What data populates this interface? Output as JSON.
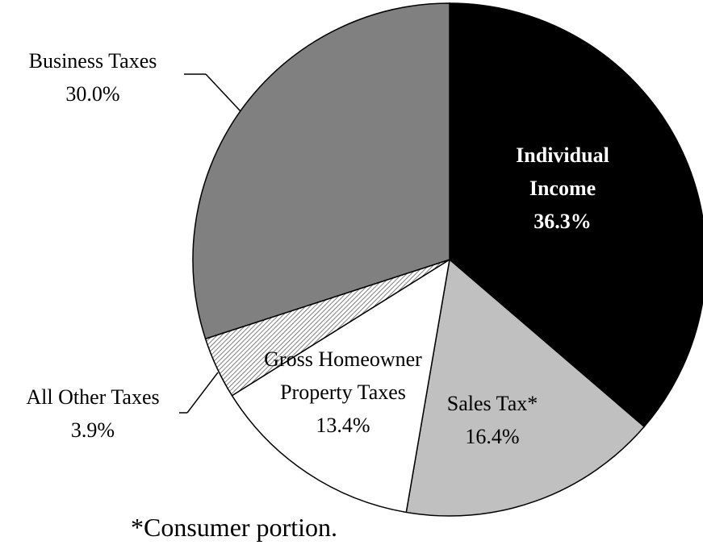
{
  "chart_data": {
    "type": "pie",
    "categories": [
      "Individual Income",
      "Sales Tax*",
      "Gross Homeowner Property Taxes",
      "All Other Taxes",
      "Business Taxes"
    ],
    "values": [
      36.3,
      16.4,
      13.4,
      3.9,
      30.0
    ],
    "value_labels": [
      "36.3%",
      "16.4%",
      "13.4%",
      "3.9%",
      "30.0%"
    ],
    "colors": [
      "#000000",
      "#c0c0c0",
      "#ffffff",
      "#555555",
      "#808080"
    ],
    "patterns": [
      null,
      null,
      null,
      "hatch",
      null
    ],
    "footnote": "*Consumer portion."
  }
}
